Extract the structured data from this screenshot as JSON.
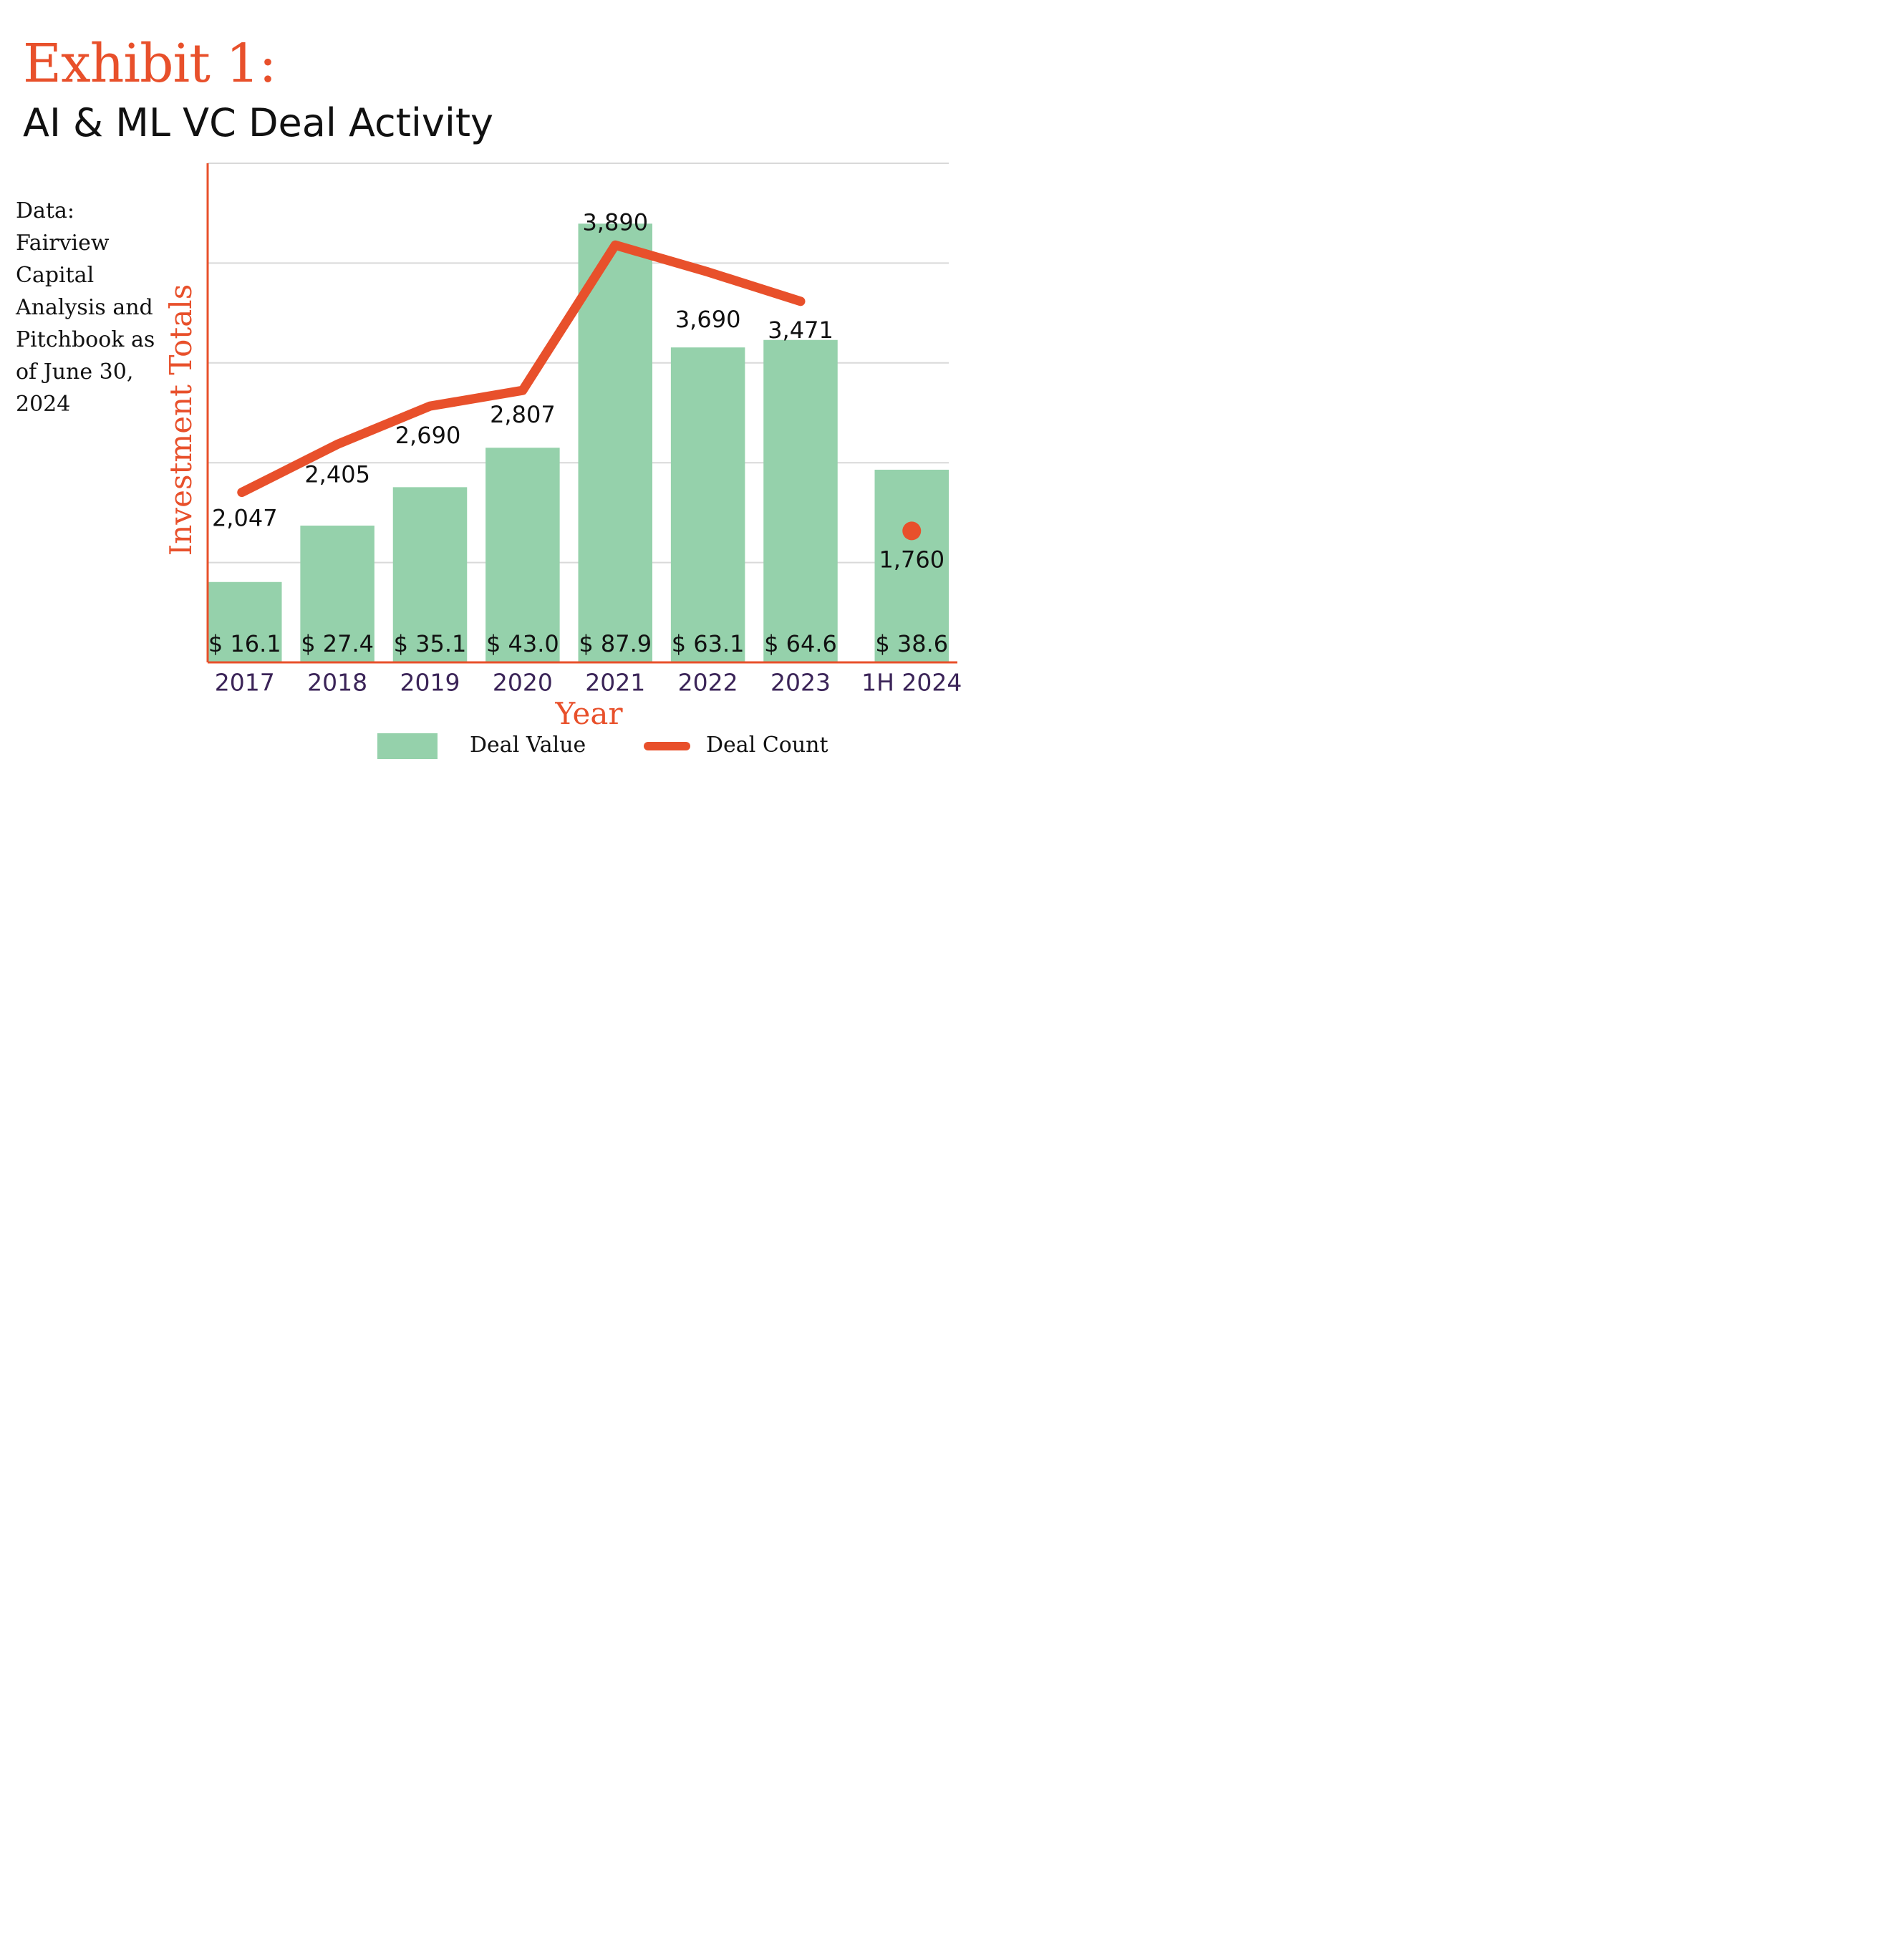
{
  "header": {
    "exhibit_label": "Exhibit 1:",
    "title": "AI & ML VC Deal Activity"
  },
  "source_note": "Data: Fairview Capital Analysis and Pitchbook as of June 30, 2024",
  "colors": {
    "accent": "#E8502B",
    "bar": "#95D1AB",
    "tick_label": "#3B2458",
    "grid": "#D9D9D9",
    "text": "#111111"
  },
  "chart_data": {
    "type": "bar",
    "title": "",
    "xlabel": "Year",
    "ylabel": "Investment Totals",
    "categories": [
      "2017",
      "2018",
      "2019",
      "2020",
      "2021",
      "2022",
      "2023",
      "1H 2024"
    ],
    "series": [
      {
        "name": "Deal Value",
        "type": "bar",
        "values": [
          16.1,
          27.4,
          35.1,
          43.0,
          87.9,
          63.1,
          64.6,
          38.6
        ],
        "labels": [
          "$ 16.1",
          "$ 27.4",
          "$ 35.1",
          "$ 43.0",
          "$ 87.9",
          "$ 63.1",
          "$ 64.6",
          "$ 38.6"
        ],
        "ylim": [
          0,
          100
        ]
      },
      {
        "name": "Deal Count",
        "type": "line",
        "values": [
          2047,
          2405,
          2690,
          2807,
          3890,
          3690,
          3471,
          1760
        ],
        "labels": [
          "2,047",
          "2,405",
          "2,690",
          "2,807",
          "3,890",
          "3,690",
          "3,471",
          "1,760"
        ],
        "line_break_before_last": true,
        "ylim": [
          780,
          4500
        ]
      }
    ],
    "grid": true,
    "legend_position": "bottom-center",
    "y_tick_labels_shown": false
  }
}
